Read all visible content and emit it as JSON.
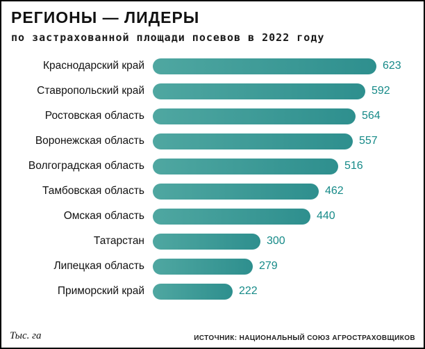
{
  "header": {
    "title": "РЕГИОНЫ — ЛИДЕРЫ",
    "subtitle": "по застрахованной площади посевов в 2022 году"
  },
  "footer": {
    "unit_label": "Тыс. га",
    "source": "ИСТОЧНИК: НАЦИОНАЛЬНЫЙ СОЮЗ АГРОСТРАХОВЩИКОВ"
  },
  "colors": {
    "bar_gradient_start": "#4fa7a1",
    "bar_gradient_end": "#2e8f8e",
    "value_text": "#168a88"
  },
  "chart_data": {
    "type": "bar",
    "orientation": "horizontal",
    "title": "РЕГИОНЫ — ЛИДЕРЫ",
    "subtitle": "по застрахованной площади посевов в 2022 году",
    "xlabel": "Тыс. га",
    "xlim": [
      0,
      650
    ],
    "grid": false,
    "legend": false,
    "categories": [
      "Краснодарский край",
      "Ставропольский край",
      "Ростовская область",
      "Воронежская область",
      "Волгоградская область",
      "Тамбовская область",
      "Омская область",
      "Татарстан",
      "Липецкая область",
      "Приморский край"
    ],
    "values": [
      623,
      592,
      564,
      557,
      516,
      462,
      440,
      300,
      279,
      222
    ],
    "source": "ИСТОЧНИК: НАЦИОНАЛЬНЫЙ СОЮЗ АГРОСТРАХОВЩИКОВ"
  }
}
